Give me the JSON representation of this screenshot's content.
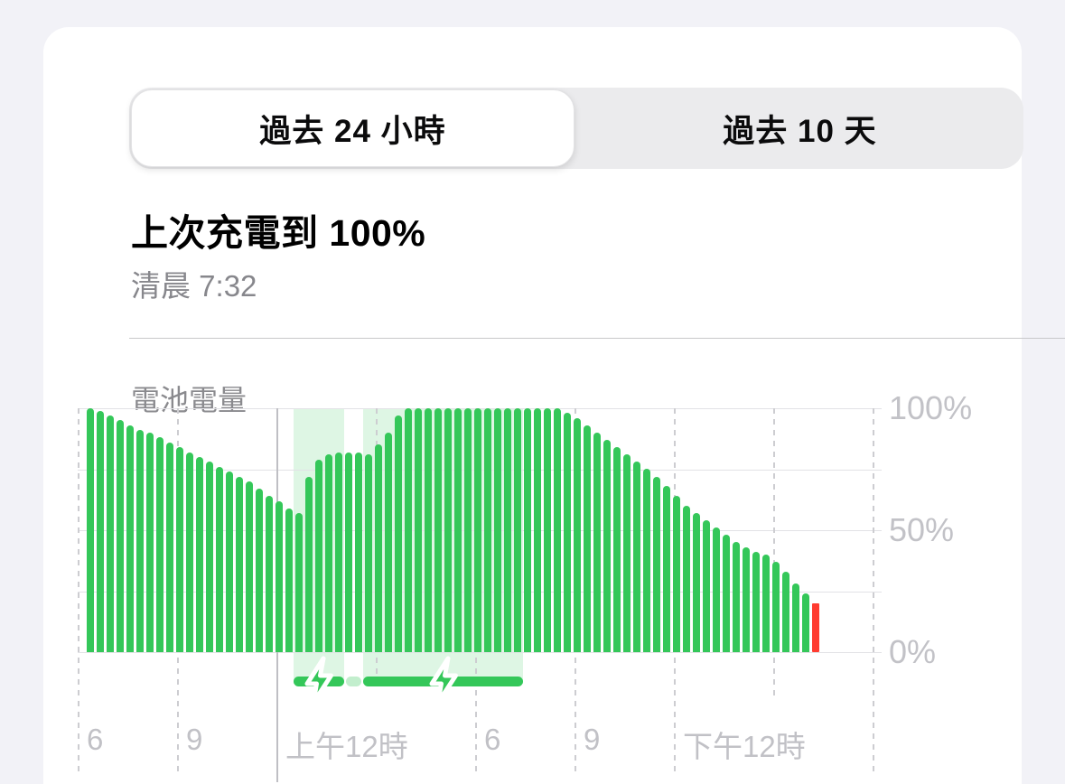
{
  "app": {
    "screen_background": "#F2F2F7",
    "card_background": "#FFFFFF"
  },
  "tabs": {
    "items": [
      {
        "label": "過去 24 小時",
        "selected": true
      },
      {
        "label": "過去 10 天",
        "selected": false
      }
    ]
  },
  "summary": {
    "title": "上次充電到 100%",
    "subtitle": "清晨 7:32"
  },
  "chart_data": {
    "type": "bar",
    "title": "電池電量",
    "unit": "%",
    "ylim": [
      0,
      100
    ],
    "grid_interval_percent": 25,
    "y_ticks": [
      {
        "label": "100%",
        "value": 100
      },
      {
        "label": "50%",
        "value": 50
      },
      {
        "label": "0%",
        "value": 0
      }
    ],
    "x_ticks": [
      {
        "label": "6"
      },
      {
        "label": "9"
      },
      {
        "label": "上午12時",
        "solid": true
      },
      {
        "label": ""
      },
      {
        "label": "6"
      },
      {
        "label": "9"
      },
      {
        "label": "下午12時"
      },
      {
        "label": ""
      },
      {
        "label": ""
      }
    ],
    "values": [
      100,
      99,
      97,
      95,
      93,
      91,
      90,
      88,
      86,
      84,
      82,
      80,
      78,
      76,
      74,
      72,
      70,
      67,
      64,
      62,
      59,
      57,
      72,
      79,
      81,
      82,
      82,
      82,
      81,
      85,
      90,
      97,
      100,
      100,
      100,
      100,
      100,
      100,
      100,
      100,
      100,
      100,
      100,
      100,
      100,
      100,
      100,
      100,
      98,
      96,
      93,
      90,
      87,
      84,
      81,
      78,
      75,
      72,
      68,
      64,
      60,
      57,
      54,
      51,
      48,
      45,
      43,
      41,
      40,
      37,
      33,
      28,
      24,
      20
    ],
    "bar_color": "#34C759",
    "last_bar_color": "#FF3B30",
    "charging_band_color": "rgba(52,199,89,0.16)",
    "charging_sessions": [
      {
        "kind": "charging",
        "start_bar": 21,
        "end_bar": 25,
        "icon": "charging-bolt-icon"
      },
      {
        "kind": "plugged-not-charging",
        "start_bar": 26,
        "end_bar": 27
      },
      {
        "kind": "charging",
        "start_bar": 28,
        "end_bar": 43,
        "icon": "charging-bolt-icon"
      }
    ]
  }
}
